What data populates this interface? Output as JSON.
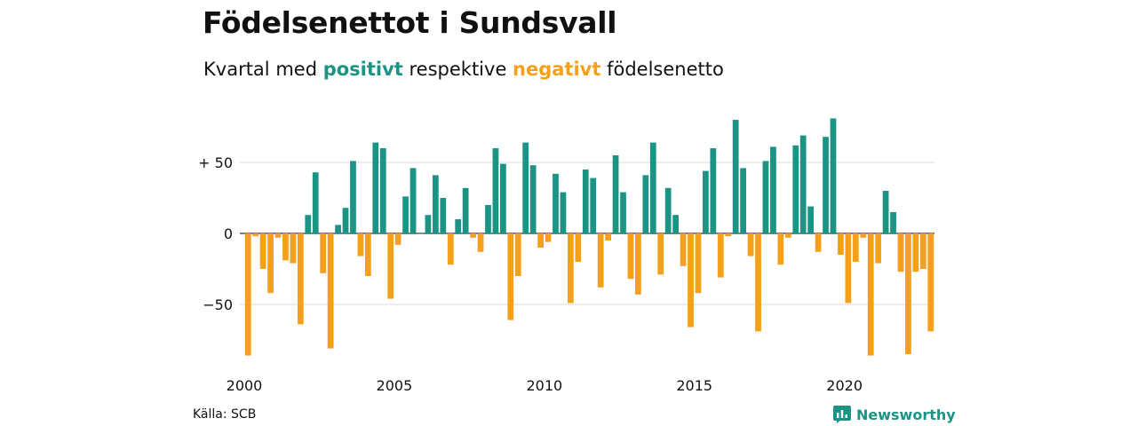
{
  "header": {
    "title": "Födelsenettot i Sundsvall",
    "subtitle_prefix": "Kvartal med ",
    "subtitle_positive": "positivt",
    "subtitle_middle": " respektive ",
    "subtitle_negative": "negativt",
    "subtitle_suffix": " födelsenetto"
  },
  "colors": {
    "positive": "#1a9585",
    "negative": "#f5a01a",
    "grid": "#d9d9d9",
    "text": "#111111"
  },
  "footer": {
    "source": "Källa: SCB",
    "brand": "Newsworthy",
    "brand_icon": "newsworthy-logo-icon"
  },
  "chart_data": {
    "type": "bar",
    "title": "Födelsenettot i Sundsvall",
    "subtitle": "Kvartal med positivt respektive negativt födelsenetto",
    "xlabel": "",
    "ylabel": "",
    "ylim": [
      -88,
      85
    ],
    "grid": true,
    "y_ticks": [
      {
        "value": 50,
        "label": "+ 50"
      },
      {
        "value": 0,
        "label": "0"
      },
      {
        "value": -50,
        "label": "−50"
      }
    ],
    "x_ticks": [
      {
        "value": 2000,
        "label": "2000"
      },
      {
        "value": 2005,
        "label": "2005"
      },
      {
        "value": 2010,
        "label": "2010"
      },
      {
        "value": 2015,
        "label": "2015"
      },
      {
        "value": 2020,
        "label": "2020"
      }
    ],
    "categories": [
      "2000 Q1",
      "2000 Q2",
      "2000 Q3",
      "2000 Q4",
      "2001 Q1",
      "2001 Q2",
      "2001 Q3",
      "2001 Q4",
      "2002 Q1",
      "2002 Q2",
      "2002 Q3",
      "2002 Q4",
      "2003 Q1",
      "2003 Q2",
      "2003 Q3",
      "2003 Q4",
      "2004 Q1",
      "2004 Q2",
      "2004 Q3",
      "2004 Q4",
      "2005 Q1",
      "2005 Q2",
      "2005 Q3",
      "2005 Q4",
      "2006 Q1",
      "2006 Q2",
      "2006 Q3",
      "2006 Q4",
      "2007 Q1",
      "2007 Q2",
      "2007 Q3",
      "2007 Q4",
      "2008 Q1",
      "2008 Q2",
      "2008 Q3",
      "2008 Q4",
      "2009 Q1",
      "2009 Q2",
      "2009 Q3",
      "2009 Q4",
      "2010 Q1",
      "2010 Q2",
      "2010 Q3",
      "2010 Q4",
      "2011 Q1",
      "2011 Q2",
      "2011 Q3",
      "2011 Q4",
      "2012 Q1",
      "2012 Q2",
      "2012 Q3",
      "2012 Q4",
      "2013 Q1",
      "2013 Q2",
      "2013 Q3",
      "2013 Q4",
      "2014 Q1",
      "2014 Q2",
      "2014 Q3",
      "2014 Q4",
      "2015 Q1",
      "2015 Q2",
      "2015 Q3",
      "2015 Q4",
      "2016 Q1",
      "2016 Q2",
      "2016 Q3",
      "2016 Q4",
      "2017 Q1",
      "2017 Q2",
      "2017 Q3",
      "2017 Q4",
      "2018 Q1",
      "2018 Q2",
      "2018 Q3",
      "2018 Q4",
      "2019 Q1",
      "2019 Q2",
      "2019 Q3",
      "2019 Q4",
      "2020 Q1",
      "2020 Q2",
      "2020 Q3",
      "2020 Q4",
      "2021 Q1",
      "2021 Q2",
      "2021 Q3",
      "2021 Q4",
      "2022 Q1",
      "2022 Q2",
      "2022 Q3",
      "2022 Q4"
    ],
    "values": [
      -86,
      -2,
      -25,
      -42,
      -3,
      -19,
      -21,
      -64,
      13,
      43,
      -28,
      -81,
      6,
      18,
      51,
      -16,
      -30,
      64,
      60,
      -46,
      -8,
      26,
      46,
      0,
      13,
      41,
      25,
      -22,
      10,
      32,
      -3,
      -13,
      20,
      60,
      49,
      -61,
      -30,
      64,
      48,
      -10,
      -6,
      42,
      29,
      -49,
      -20,
      45,
      39,
      -38,
      -5,
      55,
      29,
      -32,
      -43,
      41,
      64,
      -29,
      32,
      13,
      -23,
      -66,
      -42,
      44,
      60,
      -31,
      -2,
      80,
      46,
      -16,
      -69,
      51,
      61,
      -22,
      -3,
      62,
      69,
      19,
      -13,
      68,
      81,
      -15,
      -49,
      -20,
      -3,
      -86,
      -21,
      30,
      15,
      -27,
      -85,
      -27,
      -25,
      -69
    ]
  }
}
